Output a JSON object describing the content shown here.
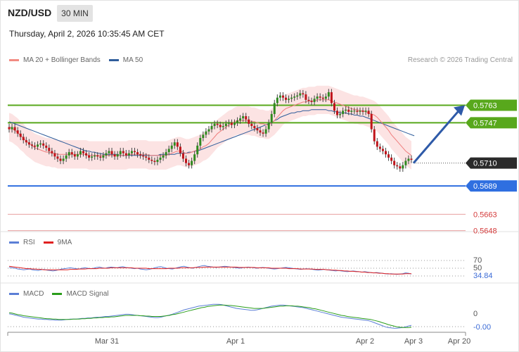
{
  "header": {
    "symbol": "NZD/USD",
    "timeframe": "30 MIN",
    "datetime": "Thursday, April 2, 2026 10:35:45 AM CET",
    "copyright": "Research © 2026 Trading Central"
  },
  "legend": {
    "price": [
      {
        "label": "MA 20 + Bollinger Bands",
        "color": "#f28b82"
      },
      {
        "label": "MA 50",
        "color": "#2f5d9b"
      }
    ],
    "rsi": [
      {
        "label": "RSI",
        "color": "#5b7fd6"
      },
      {
        "label": "9MA",
        "color": "#e02020"
      }
    ],
    "macd": [
      {
        "label": "MACD",
        "color": "#5b7fd6"
      },
      {
        "label": "MACD Signal",
        "color": "#2a9d1a"
      }
    ]
  },
  "chart_data": [
    {
      "type": "candlestick",
      "panel": "price",
      "ylim": [
        0.564,
        0.5795
      ],
      "x_tick_labels": [
        "Mar 31",
        "Apr 1",
        "Apr 2",
        "Apr 3",
        "Apr 20"
      ],
      "current_price": "0.5710",
      "levels": [
        {
          "value": "0.5763",
          "style": "resistance",
          "color": "#58a81c"
        },
        {
          "value": "0.5747",
          "style": "resistance",
          "color": "#58a81c"
        },
        {
          "value": "0.5689",
          "style": "pivot",
          "color": "#2f6fe0"
        },
        {
          "value": "0.5663",
          "style": "support",
          "color": "#e8a0a0"
        },
        {
          "value": "0.5648",
          "style": "support",
          "color": "#e8a0a0"
        }
      ],
      "close_series": [
        0.5741,
        0.5743,
        0.574,
        0.5737,
        0.5734,
        0.5731,
        0.5729,
        0.5727,
        0.5726,
        0.5725,
        0.5727,
        0.5728,
        0.5726,
        0.5724,
        0.5721,
        0.5719,
        0.5716,
        0.5714,
        0.5712,
        0.5714,
        0.5717,
        0.572,
        0.5718,
        0.5716,
        0.5718,
        0.5721,
        0.5719,
        0.5717,
        0.5715,
        0.5716,
        0.5717,
        0.5716,
        0.5715,
        0.5717,
        0.5719,
        0.5721,
        0.5718,
        0.5716,
        0.5718,
        0.5721,
        0.5719,
        0.5717,
        0.5719,
        0.5721,
        0.572,
        0.5718,
        0.5717,
        0.5716,
        0.5715,
        0.5713,
        0.5712,
        0.5711,
        0.5713,
        0.5715,
        0.5717,
        0.572,
        0.5723,
        0.5726,
        0.5729,
        0.5725,
        0.5719,
        0.5714,
        0.571,
        0.5708,
        0.5712,
        0.5718,
        0.5726,
        0.5733,
        0.5736,
        0.5739,
        0.5741,
        0.5744,
        0.5746,
        0.5745,
        0.5743,
        0.5744,
        0.5746,
        0.5747,
        0.5745,
        0.5747,
        0.5749,
        0.5751,
        0.5753,
        0.575,
        0.5746,
        0.5744,
        0.5742,
        0.574,
        0.5738,
        0.5737,
        0.5741,
        0.5747,
        0.5755,
        0.5765,
        0.577,
        0.5772,
        0.577,
        0.5768,
        0.5769,
        0.577,
        0.5771,
        0.5772,
        0.5774,
        0.5773,
        0.5768,
        0.5767,
        0.5766,
        0.5769,
        0.5771,
        0.577,
        0.5769,
        0.5771,
        0.5775,
        0.5765,
        0.5758,
        0.5754,
        0.5755,
        0.5758,
        0.5759,
        0.5757,
        0.5758,
        0.5758,
        0.5757,
        0.5758,
        0.5757,
        0.5758,
        0.5755,
        0.5741,
        0.573,
        0.5725,
        0.5723,
        0.5721,
        0.5718,
        0.5715,
        0.5712,
        0.5708,
        0.5707,
        0.5705,
        0.5708,
        0.5712,
        0.5714,
        0.5713
      ],
      "ma20": [
        0.5743,
        0.5742,
        0.574,
        0.5738,
        0.5735,
        0.5733,
        0.573,
        0.5728,
        0.5726,
        0.5724,
        0.5723,
        0.5722,
        0.5721,
        0.572,
        0.572,
        0.5719,
        0.5719,
        0.5718,
        0.5718,
        0.5718,
        0.5718,
        0.5718,
        0.5718,
        0.5718,
        0.5718,
        0.5718,
        0.5718,
        0.5718,
        0.5717,
        0.5717,
        0.5717,
        0.5717,
        0.5717,
        0.5717,
        0.5717,
        0.5717,
        0.5717,
        0.5717,
        0.5717,
        0.5717,
        0.5717,
        0.5717,
        0.5718,
        0.5718,
        0.5718,
        0.5718,
        0.5718,
        0.5718,
        0.5718,
        0.5717,
        0.5717,
        0.5717,
        0.5717,
        0.5717,
        0.5717,
        0.5717,
        0.5718,
        0.5719,
        0.572,
        0.5721,
        0.5721,
        0.572,
        0.5719,
        0.5719,
        0.572,
        0.5721,
        0.5722,
        0.5723,
        0.5725,
        0.5726,
        0.5728,
        0.5731,
        0.5734,
        0.5737,
        0.5739,
        0.5741,
        0.5743,
        0.5745,
        0.5746,
        0.5748,
        0.5749,
        0.5749,
        0.5749,
        0.5749,
        0.5749,
        0.5748,
        0.5748,
        0.5747,
        0.5746,
        0.5746,
        0.5745,
        0.5745,
        0.5747,
        0.5749,
        0.5752,
        0.5755,
        0.5758,
        0.576,
        0.5761,
        0.5762,
        0.5763,
        0.5764,
        0.5765,
        0.5766,
        0.5766,
        0.5767,
        0.5767,
        0.5767,
        0.5768,
        0.5768,
        0.5768,
        0.5768,
        0.5768,
        0.5767,
        0.5766,
        0.5765,
        0.5764,
        0.5763,
        0.5762,
        0.5761,
        0.576,
        0.5759,
        0.5759,
        0.5758,
        0.5758,
        0.5757,
        0.5756,
        0.5755,
        0.5754,
        0.5752,
        0.5749,
        0.5746,
        0.5743,
        0.574,
        0.5736,
        0.5733,
        0.573,
        0.5727,
        0.5724,
        0.5721,
        0.5719,
        0.5717
      ],
      "ma50": [
        0.5748,
        0.5747,
        0.5746,
        0.5745,
        0.5744,
        0.5743,
        0.5742,
        0.5741,
        0.574,
        0.5739,
        0.5738,
        0.5737,
        0.5736,
        0.5735,
        0.5734,
        0.5733,
        0.5732,
        0.5731,
        0.573,
        0.5729,
        0.5728,
        0.5727,
        0.5726,
        0.5725,
        0.5724,
        0.5723,
        0.5722,
        0.5721,
        0.5721,
        0.572,
        0.572,
        0.5719,
        0.5719,
        0.5718,
        0.5718,
        0.5718,
        0.5718,
        0.5718,
        0.5718,
        0.5717,
        0.5717,
        0.5717,
        0.5717,
        0.5717,
        0.5717,
        0.5717,
        0.5717,
        0.5717,
        0.5717,
        0.5717,
        0.5717,
        0.5717,
        0.5717,
        0.5718,
        0.5718,
        0.5718,
        0.5718,
        0.5718,
        0.5718,
        0.5719,
        0.5719,
        0.5719,
        0.5719,
        0.572,
        0.572,
        0.5721,
        0.5721,
        0.5722,
        0.5723,
        0.5724,
        0.5725,
        0.5726,
        0.5727,
        0.5728,
        0.5729,
        0.573,
        0.5731,
        0.5732,
        0.5733,
        0.5734,
        0.5735,
        0.5736,
        0.5737,
        0.5738,
        0.5739,
        0.574,
        0.5741,
        0.5742,
        0.5743,
        0.5744,
        0.5745,
        0.5746,
        0.5747,
        0.5749,
        0.575,
        0.5752,
        0.5753,
        0.5754,
        0.5755,
        0.5756,
        0.5756,
        0.5757,
        0.5757,
        0.5758,
        0.5758,
        0.5758,
        0.5759,
        0.5759,
        0.5759,
        0.5759,
        0.5759,
        0.5759,
        0.5758,
        0.5758,
        0.5757,
        0.5757,
        0.5756,
        0.5756,
        0.5756,
        0.5755,
        0.5755,
        0.5754,
        0.5754,
        0.5753,
        0.5753,
        0.5752,
        0.5751,
        0.575,
        0.5749,
        0.5748,
        0.5747,
        0.5746,
        0.5745,
        0.5744,
        0.5743,
        0.5742,
        0.5741,
        0.574,
        0.5739,
        0.5738,
        0.5737,
        0.5736,
        0.5735
      ],
      "forecast_arrow": {
        "from": 0.571,
        "to": 0.5763
      }
    },
    {
      "type": "line",
      "panel": "rsi",
      "y_tick_labels": [
        "70",
        "50"
      ],
      "current_value": "34.84",
      "series": [
        {
          "name": "RSI",
          "values": [
            52,
            51,
            50,
            48,
            47,
            46,
            47,
            48,
            46,
            45,
            44,
            46,
            47,
            45,
            44,
            43,
            44,
            46,
            48,
            49,
            50,
            51,
            50,
            49,
            48,
            50,
            51,
            50,
            49,
            50,
            52,
            53,
            51,
            50,
            52,
            53,
            52,
            51,
            53,
            54,
            52,
            51,
            50,
            49,
            50,
            48,
            47,
            46,
            47,
            49,
            51,
            53,
            54,
            52,
            50,
            49,
            48,
            50,
            52,
            54,
            55,
            53,
            51,
            50,
            52,
            54,
            56,
            57,
            55,
            54,
            53,
            52,
            53,
            54,
            55,
            54,
            53,
            52,
            51,
            50,
            51,
            52,
            53,
            52,
            51,
            50,
            51,
            52,
            51,
            50,
            49,
            48,
            49,
            50,
            51,
            52,
            51,
            50,
            49,
            48,
            47,
            48,
            49,
            48,
            47,
            46,
            45,
            46,
            47,
            46,
            45,
            44,
            43,
            44,
            43,
            42,
            41,
            42,
            43,
            42,
            41,
            40,
            41,
            40,
            39,
            38,
            39,
            38,
            37,
            36,
            35,
            36,
            35,
            34,
            35,
            36,
            38,
            37,
            35
          ]
        },
        {
          "name": "9MA",
          "values": [
            55,
            54,
            53,
            52,
            51,
            50,
            49,
            49,
            48,
            48,
            47,
            47,
            46,
            46,
            46,
            46,
            46,
            46,
            46,
            46,
            46,
            47,
            47,
            47,
            48,
            48,
            48,
            49,
            49,
            49,
            49,
            50,
            50,
            50,
            50,
            51,
            51,
            51,
            51,
            51,
            51,
            51,
            51,
            50,
            50,
            50,
            50,
            50,
            49,
            49,
            49,
            49,
            49,
            49,
            49,
            50,
            50,
            50,
            50,
            51,
            51,
            51,
            51,
            51,
            52,
            52,
            52,
            53,
            53,
            53,
            53,
            53,
            53,
            53,
            53,
            53,
            53,
            53,
            53,
            52,
            52,
            52,
            52,
            52,
            52,
            51,
            51,
            51,
            51,
            51,
            50,
            50,
            50,
            50,
            50,
            50,
            49,
            49,
            49,
            49,
            48,
            48,
            48,
            48,
            48,
            47,
            47,
            47,
            47,
            46,
            46,
            45,
            45,
            44,
            44,
            43,
            43,
            42,
            42,
            41,
            41,
            40,
            40,
            39,
            39,
            38,
            38,
            37,
            37,
            36,
            36,
            35,
            35,
            35,
            35,
            35,
            36,
            36,
            36
          ]
        }
      ]
    },
    {
      "type": "line",
      "panel": "macd",
      "y_tick_labels": [
        "0",
        "-0.00"
      ],
      "series": [
        {
          "name": "MACD",
          "values": [
            0.0,
            -0.1,
            -0.3,
            -0.5,
            -0.7,
            -0.9,
            -1.0,
            -1.1,
            -1.2,
            -1.3,
            -1.4,
            -1.4,
            -1.5,
            -1.5,
            -1.6,
            -1.6,
            -1.7,
            -1.7,
            -1.7,
            -1.6,
            -1.5,
            -1.4,
            -1.4,
            -1.4,
            -1.3,
            -1.2,
            -1.2,
            -1.1,
            -1.1,
            -1.0,
            -0.9,
            -0.9,
            -0.8,
            -0.7,
            -0.7,
            -0.6,
            -0.5,
            -0.4,
            -0.3,
            -0.2,
            -0.1,
            -0.1,
            -0.2,
            -0.3,
            -0.4,
            -0.5,
            -0.6,
            -0.7,
            -0.8,
            -0.9,
            -1.0,
            -1.0,
            -0.9,
            -0.7,
            -0.5,
            -0.3,
            -0.1,
            0.2,
            0.5,
            0.8,
            1.1,
            1.3,
            1.5,
            1.7,
            1.9,
            2.1,
            2.2,
            2.3,
            2.4,
            2.5,
            2.6,
            2.6,
            2.6,
            2.5,
            2.3,
            2.1,
            1.9,
            1.7,
            1.5,
            1.4,
            1.3,
            1.2,
            1.1,
            1.0,
            1.0,
            1.1,
            1.3,
            1.5,
            1.7,
            1.9,
            2.1,
            2.2,
            2.3,
            2.4,
            2.4,
            2.3,
            2.2,
            2.1,
            2.0,
            1.9,
            1.8,
            1.7,
            1.5,
            1.3,
            1.1,
            0.9,
            0.7,
            0.5,
            0.3,
            0.1,
            -0.1,
            -0.3,
            -0.5,
            -0.7,
            -0.9,
            -1.0,
            -1.1,
            -1.2,
            -1.3,
            -1.4,
            -1.5,
            -1.6,
            -1.7,
            -1.8,
            -2.0,
            -2.3,
            -2.6,
            -2.9,
            -3.2,
            -3.5,
            -3.7,
            -3.8,
            -3.9,
            -3.9,
            -3.8,
            -3.7,
            -3.5,
            -3.3,
            -3.1
          ]
        },
        {
          "name": "MACD Signal",
          "values": [
            0.3,
            0.2,
            0.0,
            -0.2,
            -0.3,
            -0.5,
            -0.6,
            -0.7,
            -0.8,
            -0.9,
            -1.0,
            -1.1,
            -1.2,
            -1.3,
            -1.3,
            -1.4,
            -1.4,
            -1.5,
            -1.5,
            -1.5,
            -1.5,
            -1.5,
            -1.4,
            -1.4,
            -1.4,
            -1.3,
            -1.3,
            -1.2,
            -1.2,
            -1.1,
            -1.1,
            -1.0,
            -1.0,
            -0.9,
            -0.9,
            -0.8,
            -0.8,
            -0.7,
            -0.6,
            -0.5,
            -0.4,
            -0.4,
            -0.4,
            -0.4,
            -0.4,
            -0.5,
            -0.5,
            -0.6,
            -0.6,
            -0.7,
            -0.7,
            -0.7,
            -0.7,
            -0.6,
            -0.5,
            -0.4,
            -0.2,
            -0.1,
            0.1,
            0.3,
            0.5,
            0.7,
            0.9,
            1.1,
            1.3,
            1.5,
            1.7,
            1.8,
            2.0,
            2.1,
            2.2,
            2.3,
            2.4,
            2.4,
            2.4,
            2.3,
            2.3,
            2.2,
            2.1,
            2.0,
            1.9,
            1.8,
            1.7,
            1.6,
            1.5,
            1.5,
            1.5,
            1.5,
            1.6,
            1.7,
            1.8,
            1.9,
            2.0,
            2.1,
            2.1,
            2.2,
            2.2,
            2.2,
            2.1,
            2.1,
            2.0,
            1.9,
            1.8,
            1.7,
            1.5,
            1.4,
            1.2,
            1.0,
            0.8,
            0.6,
            0.4,
            0.2,
            0.0,
            -0.2,
            -0.4,
            -0.5,
            -0.7,
            -0.8,
            -0.9,
            -1.0,
            -1.1,
            -1.2,
            -1.3,
            -1.4,
            -1.5,
            -1.7,
            -1.9,
            -2.1,
            -2.4,
            -2.6,
            -2.9,
            -3.1,
            -3.3,
            -3.5,
            -3.6,
            -3.7,
            -3.7,
            -3.7,
            -3.6
          ]
        }
      ]
    }
  ]
}
